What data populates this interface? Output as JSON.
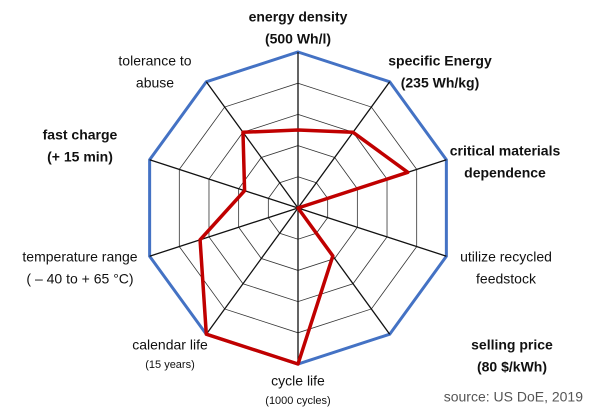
{
  "chart_data": {
    "type": "radar",
    "categories": [
      [
        "energy density",
        "(500 Wh/l)"
      ],
      [
        "specific Energy",
        "(235 Wh/kg)"
      ],
      [
        "critical materials",
        "dependence"
      ],
      [
        "utilize recycled",
        "feedstock"
      ],
      [
        "selling price",
        "(80 $/kWh)"
      ],
      [
        "cycle life",
        "(1000 cycles)"
      ],
      [
        "calendar life",
        "(15 years)"
      ],
      [
        "temperature range",
        "( – 40 to + 65 °C)"
      ],
      [
        "fast charge",
        "(+ 15 min)"
      ],
      [
        "tolerance to",
        "abuse"
      ]
    ],
    "label_bold": [
      true,
      true,
      true,
      false,
      true,
      false,
      false,
      false,
      true,
      false
    ],
    "values": [
      2.5,
      3.0,
      3.7,
      0,
      1.9,
      5,
      5,
      3.3,
      1.8,
      3.0
    ],
    "color": "#c00000",
    "outline_color": "#4472c4",
    "rlim": [
      0,
      5
    ],
    "rticks": [
      1,
      2,
      3,
      4,
      5
    ],
    "source": "source: US DoE, 2019"
  }
}
